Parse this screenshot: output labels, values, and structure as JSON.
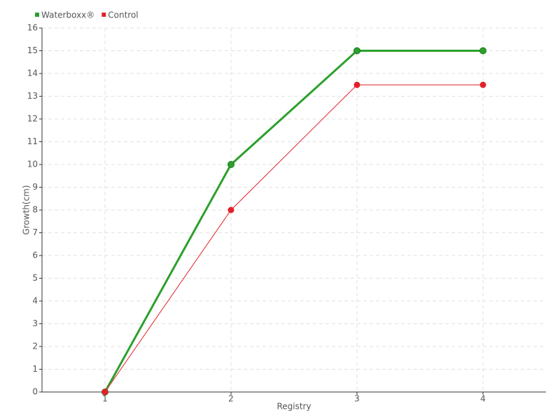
{
  "chart_data": {
    "type": "line",
    "x": [
      1,
      2,
      3,
      4
    ],
    "series": [
      {
        "name": "Waterboxx®",
        "color": "#2ca02c",
        "values": [
          0,
          10,
          15,
          15
        ]
      },
      {
        "name": "Control",
        "color": "#e3202a",
        "values": [
          0,
          8,
          13.5,
          13.5
        ]
      }
    ],
    "x_label": "Registry",
    "y_label": "Growth(cm)",
    "xlim": [
      0.5,
      4.5
    ],
    "xticks": [
      1,
      2,
      3,
      4
    ],
    "ylim": [
      0,
      16
    ],
    "yticks": [
      0,
      1,
      2,
      3,
      4,
      5,
      6,
      7,
      8,
      9,
      10,
      11,
      12,
      13,
      14,
      15,
      16
    ],
    "grid": true,
    "legend": "top-left"
  }
}
